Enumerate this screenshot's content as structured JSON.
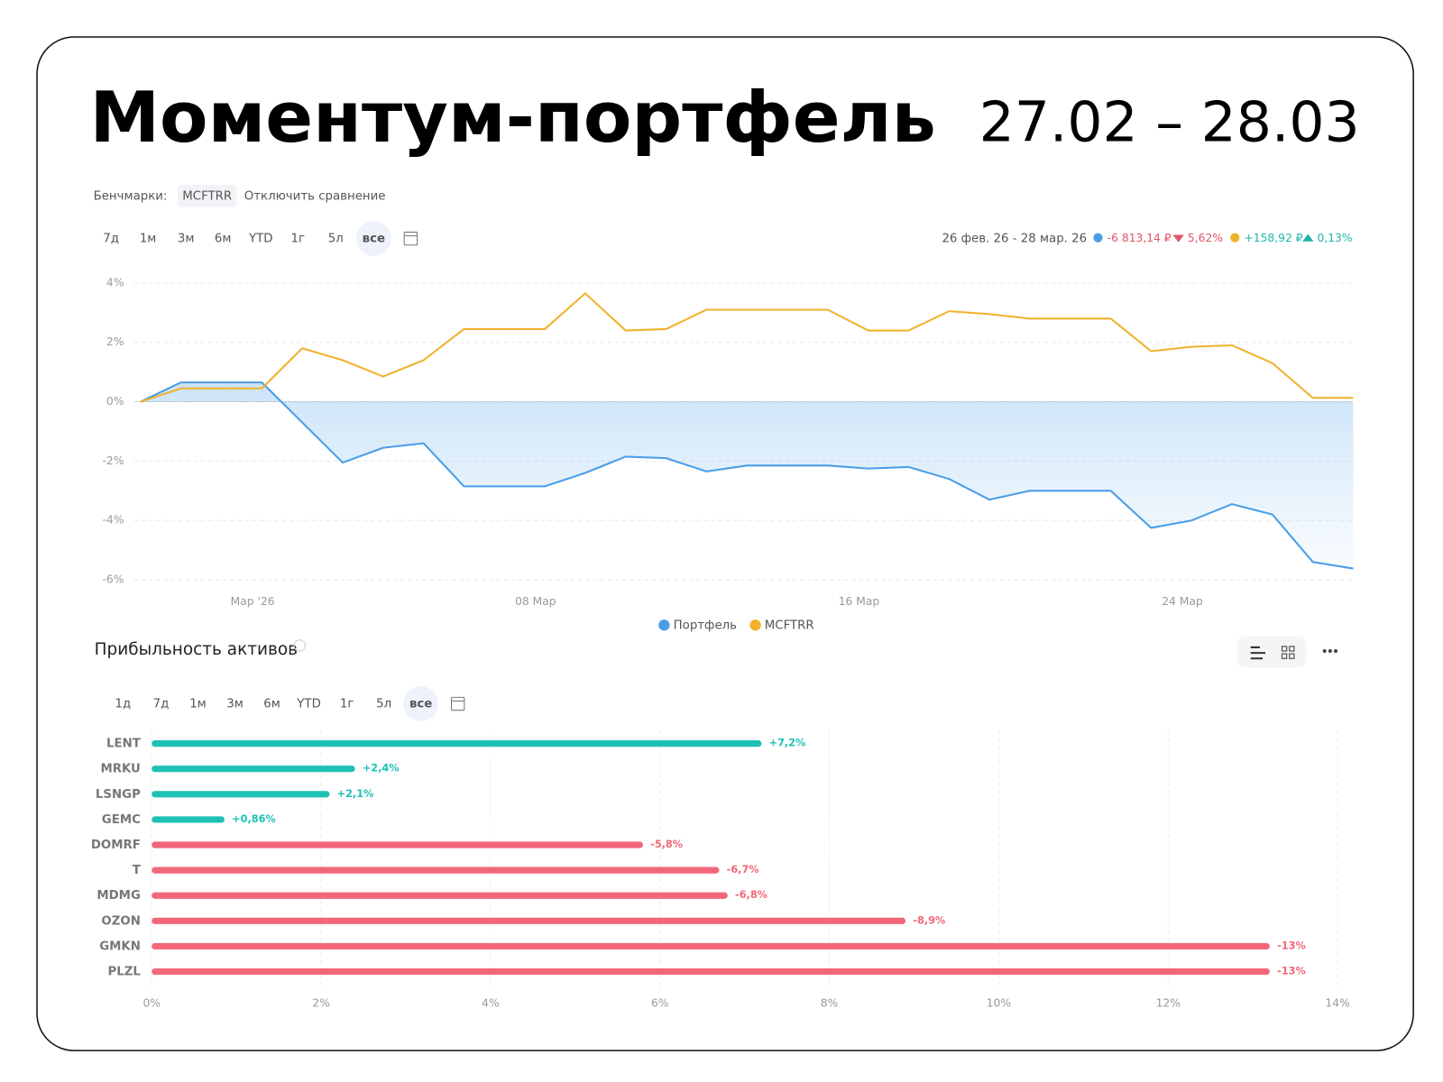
{
  "header": {
    "title": "Моментум-портфель",
    "period": "27.02 – 28.03"
  },
  "benchmarks": {
    "label": "Бенчмарки:",
    "badge": "MCFTRR",
    "action": "Отключить сравнение"
  },
  "periods_top": [
    "7д",
    "1м",
    "3м",
    "6м",
    "YTD",
    "1г",
    "5л",
    "все"
  ],
  "summary": {
    "range": "26 фев. 26 - 28 мар. 26",
    "portfolio_value": "-6 813,14 ₽",
    "portfolio_change": "5,62%",
    "benchmark_value": "+158,92 ₽",
    "benchmark_change": "0,13%"
  },
  "assets_section": {
    "title": "Прибыльность активов",
    "periods": [
      "1д",
      "7д",
      "1м",
      "3м",
      "6м",
      "YTD",
      "1г",
      "5л",
      "все"
    ]
  },
  "chart_data": [
    {
      "type": "line",
      "categories": [
        null,
        null,
        null,
        "Мар '26",
        null,
        null,
        null,
        null,
        null,
        null,
        "08 Мар",
        null,
        null,
        null,
        null,
        null,
        null,
        null,
        "16 Мар",
        null,
        null,
        null,
        null,
        null,
        null,
        null,
        "24 Мар",
        null,
        null,
        null,
        null
      ],
      "series": [
        {
          "name": "Портфель",
          "color": "#4a9ee8",
          "area": true,
          "values": [
            0,
            0.65,
            0.65,
            0.65,
            -0.7,
            -2.05,
            -1.55,
            -1.4,
            -2.85,
            -2.85,
            -2.85,
            -2.4,
            -1.85,
            -1.9,
            -2.35,
            -2.15,
            -2.15,
            -2.15,
            -2.25,
            -2.2,
            -2.6,
            -3.3,
            -3.0,
            -3.0,
            -3.0,
            -4.25,
            -4.0,
            -3.45,
            -3.8,
            -5.4,
            -5.62
          ]
        },
        {
          "name": "MCFTRR",
          "color": "#f0b22c",
          "values": [
            0,
            0.45,
            0.45,
            0.45,
            1.8,
            1.4,
            0.85,
            1.4,
            2.45,
            2.45,
            2.45,
            3.65,
            2.4,
            2.45,
            3.1,
            3.1,
            3.1,
            3.1,
            2.4,
            2.4,
            3.05,
            2.95,
            2.8,
            2.8,
            2.8,
            1.7,
            1.85,
            1.9,
            1.3,
            0.13,
            0.13
          ]
        }
      ],
      "ylim": [
        -6,
        4
      ],
      "yticks": [
        {
          "value": -6,
          "label": "-6%"
        },
        {
          "value": -4,
          "label": "-4%"
        },
        {
          "value": -2,
          "label": "-2%"
        },
        {
          "value": 0,
          "label": "0%"
        },
        {
          "value": 2,
          "label": "2%"
        },
        {
          "value": 4,
          "label": "4%"
        }
      ],
      "grid": true,
      "legend": "bottom"
    },
    {
      "type": "hbar",
      "categories": [
        "LENT",
        "MRKU",
        "LSNGP",
        "GEMC",
        "DOMRF",
        "T",
        "MDMG",
        "OZON",
        "GMKN",
        "PLZL"
      ],
      "values": [
        7.2,
        2.4,
        2.1,
        0.86,
        -5.8,
        -6.7,
        -6.8,
        -8.9,
        -13.2,
        -13.2
      ],
      "value_labels": [
        "+7,2%",
        "+2,4%",
        "+2,1%",
        "+0,86%",
        "-5,8%",
        "-6,7%",
        "-6,8%",
        "-8,9%",
        "-13%",
        "-13%"
      ],
      "color_positive": "#1fc1b4",
      "color_negative": "#f2677a",
      "xlim": [
        0,
        14
      ],
      "xticks": [
        {
          "value": 0,
          "label": "0%"
        },
        {
          "value": 2,
          "label": "2%"
        },
        {
          "value": 4,
          "label": "4%"
        },
        {
          "value": 6,
          "label": "6%"
        },
        {
          "value": 8,
          "label": "8%"
        },
        {
          "value": 10,
          "label": "10%"
        },
        {
          "value": 12,
          "label": "12%"
        },
        {
          "value": 14,
          "label": "14%"
        }
      ],
      "grid": true
    }
  ]
}
